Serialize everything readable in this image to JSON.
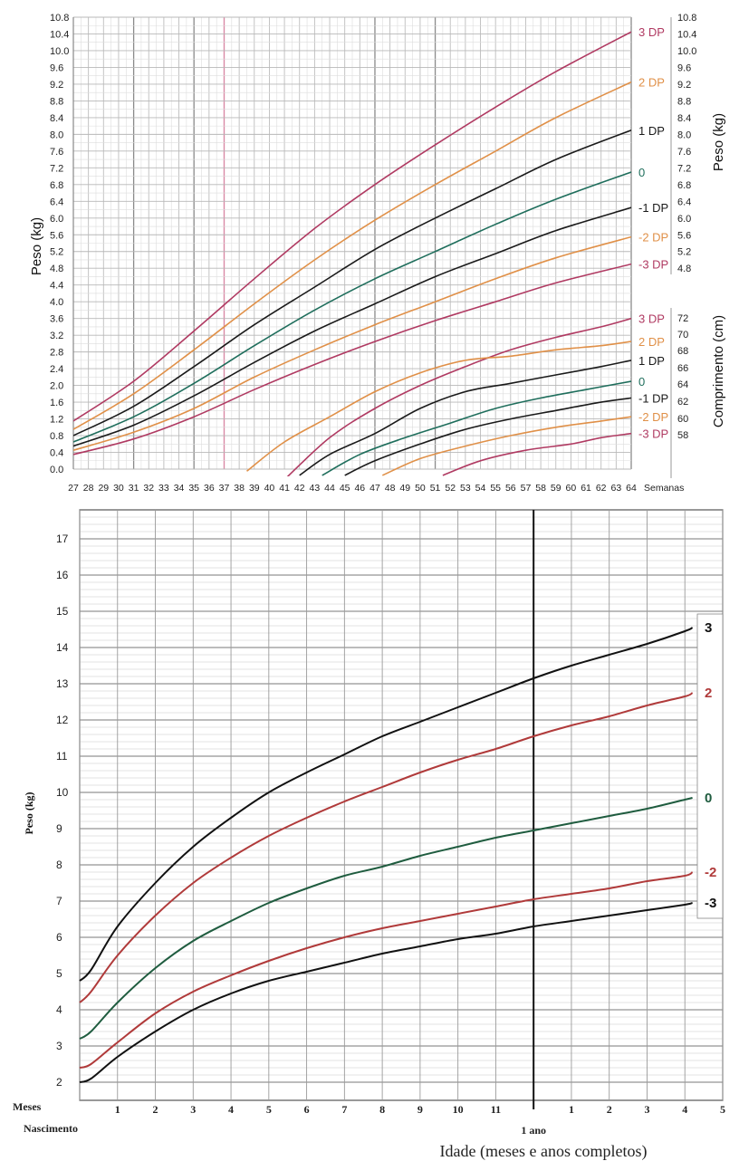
{
  "chart_data": [
    {
      "type": "line",
      "x_axis": {
        "unit_label": "Semanas",
        "ticks": [
          27,
          28,
          29,
          30,
          31,
          32,
          33,
          34,
          35,
          36,
          37,
          38,
          39,
          40,
          41,
          42,
          43,
          44,
          45,
          46,
          47,
          48,
          49,
          50,
          51,
          52,
          53,
          54,
          55,
          56,
          57,
          58,
          59,
          60,
          61,
          62,
          63,
          64
        ],
        "xlim": [
          27,
          64
        ]
      },
      "weight_axis": {
        "label_left": "Peso (kg)",
        "label_right": "Peso (kg)",
        "ticks_left": [
          "10.8",
          "10.4",
          "10.0",
          "9.6",
          "9.2",
          "8.8",
          "8.4",
          "8.0",
          "7.6",
          "7.2",
          "6.8",
          "6.4",
          "6.0",
          "5.6",
          "5.2",
          "4.8",
          "4.4",
          "4.0",
          "3.6",
          "3.2",
          "2.8",
          "2.4",
          "2.0",
          "1.6",
          "1.2",
          "0.8",
          "0.4",
          "0.0"
        ],
        "ticks_right": [
          "10.8",
          "10.4",
          "10.0",
          "9.6",
          "9.2",
          "8.8",
          "8.4",
          "8.0",
          "7.6",
          "7.2",
          "6.8",
          "6.4",
          "6.0",
          "5.6",
          "5.2",
          "4.8"
        ],
        "ylim": [
          0,
          10.8
        ]
      },
      "length_axis": {
        "label": "Comprimento (cm)",
        "ticks": [
          "72",
          "70",
          "68",
          "66",
          "64",
          "62",
          "60",
          "58"
        ]
      },
      "weight_series": [
        {
          "name": "3 DP",
          "color": "#b03a62",
          "x": [
            27,
            31,
            35,
            39,
            43,
            47,
            51,
            55,
            59,
            64
          ],
          "y": [
            1.15,
            2.1,
            3.3,
            4.55,
            5.75,
            6.8,
            7.75,
            8.65,
            9.5,
            10.45
          ]
        },
        {
          "name": "2 DP",
          "color": "#e09048",
          "x": [
            27,
            31,
            35,
            39,
            43,
            47,
            51,
            55,
            59,
            64
          ],
          "y": [
            0.95,
            1.8,
            2.85,
            3.95,
            5.0,
            5.95,
            6.8,
            7.6,
            8.4,
            9.25
          ]
        },
        {
          "name": "1 DP",
          "color": "#1a1a1a",
          "x": [
            27,
            31,
            35,
            39,
            43,
            47,
            51,
            55,
            59,
            64
          ],
          "y": [
            0.8,
            1.5,
            2.45,
            3.45,
            4.35,
            5.25,
            6.0,
            6.7,
            7.4,
            8.1
          ]
        },
        {
          "name": "0",
          "color": "#1f6e5c",
          "x": [
            27,
            31,
            35,
            39,
            43,
            47,
            51,
            55,
            59,
            64
          ],
          "y": [
            0.65,
            1.25,
            2.05,
            2.95,
            3.8,
            4.55,
            5.2,
            5.85,
            6.45,
            7.1
          ]
        },
        {
          "name": "-1 DP",
          "color": "#1a1a1a",
          "x": [
            27,
            31,
            35,
            39,
            43,
            47,
            51,
            55,
            59,
            64
          ],
          "y": [
            0.55,
            1.05,
            1.75,
            2.55,
            3.3,
            3.95,
            4.6,
            5.15,
            5.7,
            6.25
          ]
        },
        {
          "name": "-2 DP",
          "color": "#e09048",
          "x": [
            27,
            31,
            35,
            39,
            43,
            47,
            51,
            55,
            59,
            64
          ],
          "y": [
            0.45,
            0.88,
            1.45,
            2.2,
            2.85,
            3.45,
            4.0,
            4.55,
            5.05,
            5.55
          ]
        },
        {
          "name": "-3 DP",
          "color": "#b03a62",
          "x": [
            27,
            31,
            35,
            39,
            43,
            47,
            51,
            55,
            59,
            64
          ],
          "y": [
            0.35,
            0.72,
            1.25,
            1.9,
            2.5,
            3.05,
            3.55,
            4.0,
            4.45,
            4.9
          ]
        }
      ],
      "length_series": [
        {
          "name": "3 DP",
          "color": "#b03a62",
          "x": [
            41,
            44,
            47,
            50,
            53,
            56,
            59,
            62,
            64
          ],
          "y": [
            -0.25,
            0.75,
            1.45,
            2.0,
            2.45,
            2.85,
            3.15,
            3.4,
            3.6
          ]
        },
        {
          "name": "2 DP",
          "color": "#e09048",
          "x": [
            38.5,
            41,
            44,
            47,
            50,
            53,
            56,
            59,
            62,
            64
          ],
          "y": [
            -0.05,
            0.65,
            1.25,
            1.85,
            2.3,
            2.6,
            2.7,
            2.85,
            2.95,
            3.05
          ]
        },
        {
          "name": "1 DP",
          "color": "#1a1a1a",
          "x": [
            42,
            44,
            47,
            50,
            53,
            56,
            59,
            62,
            64
          ],
          "y": [
            -0.15,
            0.35,
            0.85,
            1.45,
            1.85,
            2.05,
            2.25,
            2.45,
            2.6
          ]
        },
        {
          "name": "0",
          "color": "#1f6e5c",
          "x": [
            43.5,
            46,
            49,
            52,
            55,
            58,
            61,
            64
          ],
          "y": [
            -0.15,
            0.35,
            0.75,
            1.1,
            1.45,
            1.7,
            1.9,
            2.1
          ]
        },
        {
          "name": "-1 DP",
          "color": "#1a1a1a",
          "x": [
            45,
            47,
            50,
            53,
            56,
            59,
            62,
            64
          ],
          "y": [
            -0.15,
            0.2,
            0.6,
            0.95,
            1.2,
            1.4,
            1.6,
            1.7
          ]
        },
        {
          "name": "-2 DP",
          "color": "#e09048",
          "x": [
            47.5,
            50,
            53,
            56,
            59,
            62,
            64
          ],
          "y": [
            -0.15,
            0.25,
            0.55,
            0.8,
            1.0,
            1.15,
            1.25
          ]
        },
        {
          "name": "-3 DP",
          "color": "#b03a62",
          "x": [
            51.5,
            54,
            57,
            60,
            62,
            64
          ],
          "y": [
            -0.15,
            0.2,
            0.45,
            0.6,
            0.75,
            0.85
          ]
        }
      ]
    },
    {
      "type": "line",
      "ylabel": "Peso (kg)",
      "xlabel": "Idade (meses e anos completos)",
      "y_ticks": [
        2,
        3,
        4,
        5,
        6,
        7,
        8,
        9,
        10,
        11,
        12,
        13,
        14,
        15,
        16,
        17
      ],
      "ylim": [
        1.5,
        17.8
      ],
      "x_tick_labels": [
        "1",
        "2",
        "3",
        "4",
        "5",
        "6",
        "7",
        "8",
        "9",
        "10",
        "11",
        "1",
        "2",
        "3",
        "4",
        "5"
      ],
      "x_tick_months": [
        1,
        2,
        3,
        4,
        5,
        6,
        7,
        8,
        9,
        10,
        11,
        13,
        14,
        15,
        16,
        17
      ],
      "xlim": [
        0,
        17
      ],
      "x_prefix_label": "Meses",
      "x_start_label": "Nascimento",
      "x_year_label": "1 ano",
      "series": [
        {
          "name": "3",
          "color": "#111111",
          "x": [
            0,
            0.3,
            1,
            2,
            3,
            4,
            5,
            6,
            7,
            8,
            9,
            10,
            11,
            12,
            13,
            14,
            15,
            16,
            16.2
          ],
          "y": [
            4.8,
            5.1,
            6.3,
            7.5,
            8.5,
            9.3,
            10.0,
            10.55,
            11.05,
            11.55,
            11.95,
            12.35,
            12.75,
            13.15,
            13.5,
            13.8,
            14.1,
            14.45,
            14.55
          ]
        },
        {
          "name": "2",
          "color": "#b03a3a",
          "x": [
            0,
            0.3,
            1,
            2,
            3,
            4,
            5,
            6,
            7,
            8,
            9,
            10,
            11,
            12,
            13,
            14,
            15,
            16,
            16.2
          ],
          "y": [
            4.2,
            4.5,
            5.5,
            6.6,
            7.5,
            8.2,
            8.8,
            9.3,
            9.75,
            10.15,
            10.55,
            10.9,
            11.2,
            11.55,
            11.85,
            12.1,
            12.4,
            12.65,
            12.75
          ]
        },
        {
          "name": "0",
          "color": "#1f5c3f",
          "x": [
            0,
            0.3,
            1,
            2,
            3,
            4,
            5,
            6,
            7,
            8,
            9,
            10,
            11,
            12,
            13,
            14,
            15,
            16,
            16.2
          ],
          "y": [
            3.2,
            3.4,
            4.2,
            5.15,
            5.9,
            6.45,
            6.95,
            7.35,
            7.7,
            7.95,
            8.25,
            8.5,
            8.75,
            8.95,
            9.15,
            9.35,
            9.55,
            9.8,
            9.85
          ]
        },
        {
          "name": "-2",
          "color": "#b03a3a",
          "x": [
            0,
            0.3,
            1,
            2,
            3,
            4,
            5,
            6,
            7,
            8,
            9,
            10,
            11,
            12,
            13,
            14,
            15,
            16,
            16.2
          ],
          "y": [
            2.4,
            2.5,
            3.1,
            3.9,
            4.5,
            4.95,
            5.35,
            5.7,
            6.0,
            6.25,
            6.45,
            6.65,
            6.85,
            7.05,
            7.2,
            7.35,
            7.55,
            7.7,
            7.8
          ]
        },
        {
          "name": "-3",
          "color": "#111111",
          "x": [
            0,
            0.3,
            1,
            2,
            3,
            4,
            5,
            6,
            7,
            8,
            9,
            10,
            11,
            12,
            13,
            14,
            15,
            16,
            16.2
          ],
          "y": [
            2.0,
            2.1,
            2.7,
            3.4,
            4.0,
            4.45,
            4.8,
            5.05,
            5.3,
            5.55,
            5.75,
            5.95,
            6.1,
            6.3,
            6.45,
            6.6,
            6.75,
            6.9,
            6.95
          ]
        }
      ]
    }
  ]
}
